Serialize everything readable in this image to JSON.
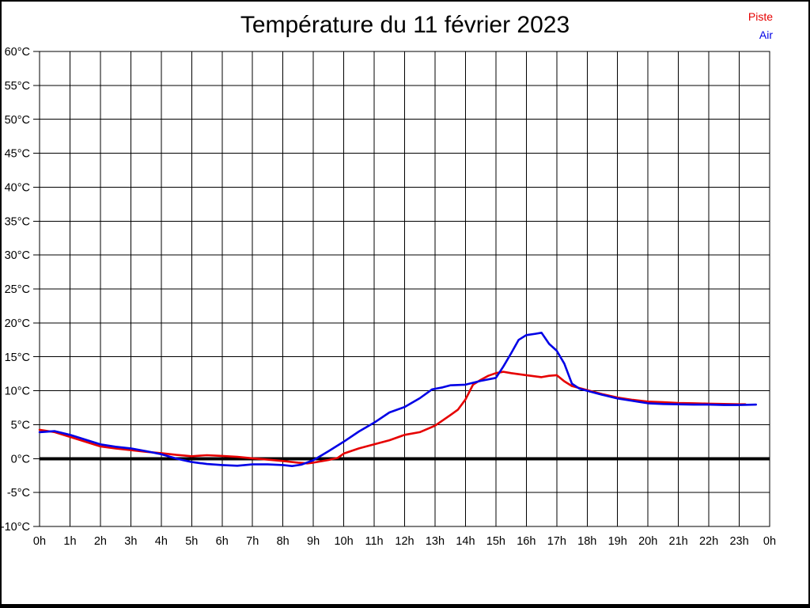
{
  "title": "Température du 11 février 2023",
  "legend": [
    {
      "label": "Piste",
      "color": "#e60000"
    },
    {
      "label": "Air",
      "color": "#0000e6"
    }
  ],
  "chart_data": {
    "type": "line",
    "title": "Température du 11 février 2023",
    "xlabel": "",
    "ylabel": "",
    "xlim": [
      0,
      24
    ],
    "ylim": [
      -10,
      60
    ],
    "grid": true,
    "zero_line": true,
    "legend_position": "top-right",
    "x_tick_values": [
      0,
      1,
      2,
      3,
      4,
      5,
      6,
      7,
      8,
      9,
      10,
      11,
      12,
      13,
      14,
      15,
      16,
      17,
      18,
      19,
      20,
      21,
      22,
      23,
      24
    ],
    "x_tick_labels": [
      "0h",
      "1h",
      "2h",
      "3h",
      "4h",
      "5h",
      "6h",
      "7h",
      "8h",
      "9h",
      "10h",
      "11h",
      "12h",
      "13h",
      "14h",
      "15h",
      "16h",
      "17h",
      "18h",
      "19h",
      "20h",
      "21h",
      "22h",
      "23h",
      "0h"
    ],
    "y_tick_values": [
      60,
      55,
      50,
      45,
      40,
      35,
      30,
      25,
      20,
      15,
      10,
      5,
      0,
      -5,
      -10
    ],
    "y_tick_labels": [
      "60°C",
      "55°C",
      "50°C",
      "45°C",
      "40°C",
      "35°C",
      "30°C",
      "25°C",
      "20°C",
      "15°C",
      "10°C",
      "5°C",
      "0°C",
      "-5°C",
      "-10°C"
    ],
    "series": [
      {
        "name": "Piste",
        "color": "#e60000",
        "points": [
          [
            0,
            4.25
          ],
          [
            0.5,
            3.9
          ],
          [
            1,
            3.2
          ],
          [
            1.5,
            2.5
          ],
          [
            2,
            1.8
          ],
          [
            2.5,
            1.5
          ],
          [
            3,
            1.25
          ],
          [
            3.5,
            1.0
          ],
          [
            4,
            0.8
          ],
          [
            4.5,
            0.55
          ],
          [
            5,
            0.35
          ],
          [
            5.5,
            0.5
          ],
          [
            6,
            0.4
          ],
          [
            6.5,
            0.25
          ],
          [
            7,
            0.05
          ],
          [
            7.5,
            -0.15
          ],
          [
            8,
            -0.35
          ],
          [
            8.5,
            -0.6
          ],
          [
            8.8,
            -0.7
          ],
          [
            9,
            -0.6
          ],
          [
            9.5,
            -0.2
          ],
          [
            9.8,
            0.1
          ],
          [
            10,
            0.75
          ],
          [
            10.5,
            1.5
          ],
          [
            11,
            2.1
          ],
          [
            11.5,
            2.7
          ],
          [
            12,
            3.5
          ],
          [
            12.5,
            3.9
          ],
          [
            13,
            4.85
          ],
          [
            13.5,
            6.4
          ],
          [
            13.75,
            7.2
          ],
          [
            14,
            8.7
          ],
          [
            14.25,
            10.9
          ],
          [
            14.5,
            11.6
          ],
          [
            14.75,
            12.2
          ],
          [
            15,
            12.6
          ],
          [
            15.25,
            12.8
          ],
          [
            15.5,
            12.6
          ],
          [
            16,
            12.3
          ],
          [
            16.5,
            12.0
          ],
          [
            16.75,
            12.2
          ],
          [
            17,
            12.3
          ],
          [
            17.25,
            11.4
          ],
          [
            17.5,
            10.7
          ],
          [
            18,
            10.1
          ],
          [
            18.5,
            9.5
          ],
          [
            19,
            9.0
          ],
          [
            19.5,
            8.65
          ],
          [
            20,
            8.4
          ],
          [
            20.5,
            8.3
          ],
          [
            21,
            8.2
          ],
          [
            21.5,
            8.15
          ],
          [
            22,
            8.1
          ],
          [
            22.5,
            8.05
          ],
          [
            23,
            8.0
          ],
          [
            23.2,
            8.0
          ]
        ]
      },
      {
        "name": "Air",
        "color": "#0000e6",
        "points": [
          [
            0,
            3.9
          ],
          [
            0.5,
            4.05
          ],
          [
            1,
            3.5
          ],
          [
            1.5,
            2.8
          ],
          [
            2,
            2.1
          ],
          [
            2.5,
            1.75
          ],
          [
            3,
            1.5
          ],
          [
            3.5,
            1.1
          ],
          [
            4,
            0.65
          ],
          [
            4.5,
            0.0
          ],
          [
            5,
            -0.5
          ],
          [
            5.5,
            -0.8
          ],
          [
            6,
            -0.95
          ],
          [
            6.5,
            -1.05
          ],
          [
            7,
            -0.85
          ],
          [
            7.5,
            -0.85
          ],
          [
            8,
            -0.95
          ],
          [
            8.3,
            -1.1
          ],
          [
            8.6,
            -0.9
          ],
          [
            9,
            -0.25
          ],
          [
            9.5,
            1.1
          ],
          [
            10,
            2.5
          ],
          [
            10.5,
            4.0
          ],
          [
            11,
            5.3
          ],
          [
            11.5,
            6.8
          ],
          [
            12,
            7.6
          ],
          [
            12.5,
            8.9
          ],
          [
            12.9,
            10.2
          ],
          [
            13.25,
            10.5
          ],
          [
            13.5,
            10.8
          ],
          [
            14,
            10.9
          ],
          [
            14.5,
            11.45
          ],
          [
            15,
            11.9
          ],
          [
            15.25,
            13.6
          ],
          [
            15.5,
            15.5
          ],
          [
            15.75,
            17.5
          ],
          [
            16,
            18.2
          ],
          [
            16.3,
            18.4
          ],
          [
            16.5,
            18.55
          ],
          [
            16.75,
            16.9
          ],
          [
            17,
            15.9
          ],
          [
            17.25,
            14.0
          ],
          [
            17.5,
            11.05
          ],
          [
            17.75,
            10.3
          ],
          [
            18,
            10.0
          ],
          [
            18.5,
            9.4
          ],
          [
            19,
            8.85
          ],
          [
            19.5,
            8.5
          ],
          [
            20,
            8.15
          ],
          [
            20.5,
            8.05
          ],
          [
            21,
            8.0
          ],
          [
            21.5,
            7.95
          ],
          [
            22,
            7.95
          ],
          [
            22.5,
            7.9
          ],
          [
            23,
            7.9
          ],
          [
            23.55,
            7.95
          ]
        ]
      }
    ]
  }
}
